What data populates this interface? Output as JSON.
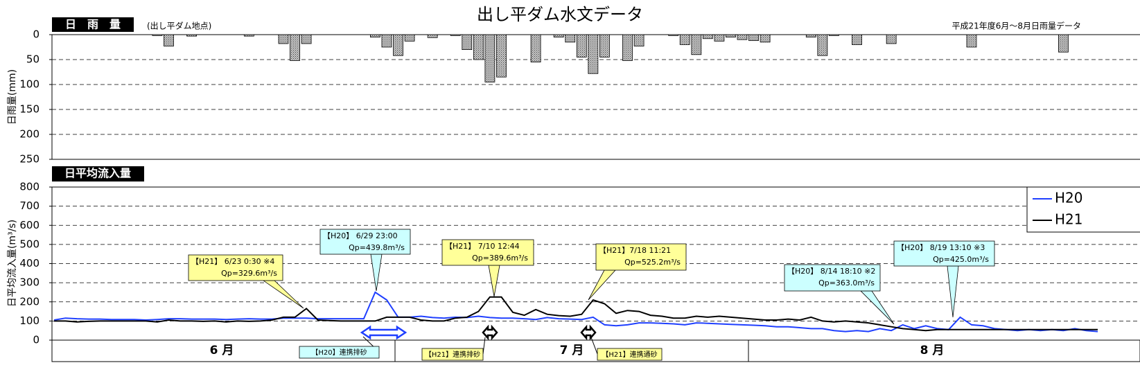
{
  "chart_data": [
    {
      "type": "bar",
      "title": "出し平ダム水文データ",
      "header": "日　雨　量",
      "note": "(出し平ダム地点)",
      "source": "平成21年度6月～8月日雨量データ",
      "ylabel": "日雨量(mm)",
      "ylim": [
        0,
        250
      ],
      "yticks": [
        0,
        50,
        100,
        150,
        200,
        250
      ],
      "inverted": true,
      "grid": true,
      "color": "#a0a0a0",
      "values": [
        0,
        0,
        0,
        0,
        0,
        0,
        0,
        0,
        0,
        2,
        23,
        0,
        3,
        0,
        0,
        0,
        0,
        3,
        0,
        0,
        18,
        52,
        18,
        0,
        0,
        0,
        0,
        0,
        5,
        25,
        42,
        13,
        0,
        6,
        0,
        2,
        30,
        50,
        95,
        85,
        0,
        0,
        55,
        0,
        5,
        15,
        45,
        78,
        45,
        0,
        52,
        23,
        0,
        0,
        2,
        20,
        40,
        8,
        13,
        5,
        10,
        12,
        15,
        0,
        0,
        0,
        5,
        42,
        2,
        0,
        20,
        0,
        0,
        18,
        0,
        0,
        0,
        0,
        0,
        0,
        25,
        0,
        0,
        0,
        0,
        0,
        0,
        0,
        35,
        0,
        0,
        0
      ]
    },
    {
      "type": "line",
      "header": "日平均流入量",
      "ylabel": "日平均流入量(m³/s)",
      "ylim": [
        0,
        800
      ],
      "yticks": [
        0,
        100,
        200,
        300,
        400,
        500,
        600,
        700,
        800
      ],
      "grid": true,
      "months": [
        "6 月",
        "7 月",
        "8 月"
      ],
      "series": [
        {
          "name": "H20",
          "color": "#1f3fff",
          "values": [
            105,
            115,
            112,
            110,
            110,
            108,
            108,
            108,
            105,
            108,
            112,
            112,
            110,
            110,
            110,
            108,
            110,
            112,
            110,
            110,
            115,
            115,
            115,
            112,
            112,
            112,
            112,
            112,
            250,
            210,
            120,
            120,
            125,
            118,
            115,
            120,
            118,
            125,
            118,
            115,
            115,
            112,
            108,
            118,
            112,
            110,
            108,
            120,
            80,
            75,
            80,
            90,
            90,
            88,
            85,
            80,
            90,
            88,
            85,
            82,
            80,
            78,
            75,
            70,
            70,
            65,
            60,
            60,
            50,
            45,
            50,
            45,
            60,
            50,
            80,
            60,
            75,
            60,
            55,
            120,
            80,
            75,
            60,
            55,
            50,
            55,
            50,
            55,
            50,
            60,
            50,
            45
          ]
        },
        {
          "name": "H21",
          "color": "#000000",
          "values": [
            100,
            100,
            95,
            98,
            100,
            100,
            100,
            100,
            100,
            95,
            105,
            100,
            100,
            98,
            100,
            95,
            100,
            98,
            100,
            105,
            120,
            120,
            165,
            105,
            102,
            100,
            100,
            100,
            100,
            120,
            120,
            120,
            105,
            100,
            100,
            115,
            120,
            150,
            225,
            225,
            145,
            130,
            160,
            135,
            128,
            125,
            135,
            210,
            190,
            140,
            155,
            150,
            130,
            125,
            115,
            115,
            125,
            120,
            125,
            120,
            115,
            110,
            105,
            105,
            110,
            105,
            120,
            100,
            95,
            100,
            95,
            90,
            80,
            70,
            60,
            55,
            50,
            55,
            55,
            55,
            55,
            55,
            55,
            55,
            55,
            55,
            55,
            55,
            55,
            55,
            55,
            55
          ]
        }
      ],
      "annotations": [
        {
          "color": "#ffff99",
          "lines": [
            "【H21】 6/23 0:30 ※4",
            "Qp=329.6m³/s"
          ]
        },
        {
          "color": "#ccffff",
          "lines": [
            "【H20】 6/29 23:00",
            "Qp=439.8m³/s"
          ]
        },
        {
          "color": "#ffff99",
          "lines": [
            "【H21】 7/10 12:44",
            "Qp=389.6m³/s"
          ]
        },
        {
          "color": "#ffff99",
          "lines": [
            "【H21】7/18 11:21",
            "Qp=525.2m³/s"
          ]
        },
        {
          "color": "#ccffff",
          "lines": [
            "【H20】 8/14 18:10 ※2",
            "Qp=363.0m³/s"
          ]
        },
        {
          "color": "#ccffff",
          "lines": [
            "【H20】 8/19 13:10 ※3",
            "Qp=425.0m³/s"
          ]
        }
      ],
      "events": [
        {
          "color": "#ccffff",
          "label": "【H20】連携排砂"
        },
        {
          "color": "#ffff99",
          "label": "【H21】連携排砂"
        },
        {
          "color": "#ffff99",
          "label": "【H21】連携通砂"
        }
      ]
    }
  ]
}
